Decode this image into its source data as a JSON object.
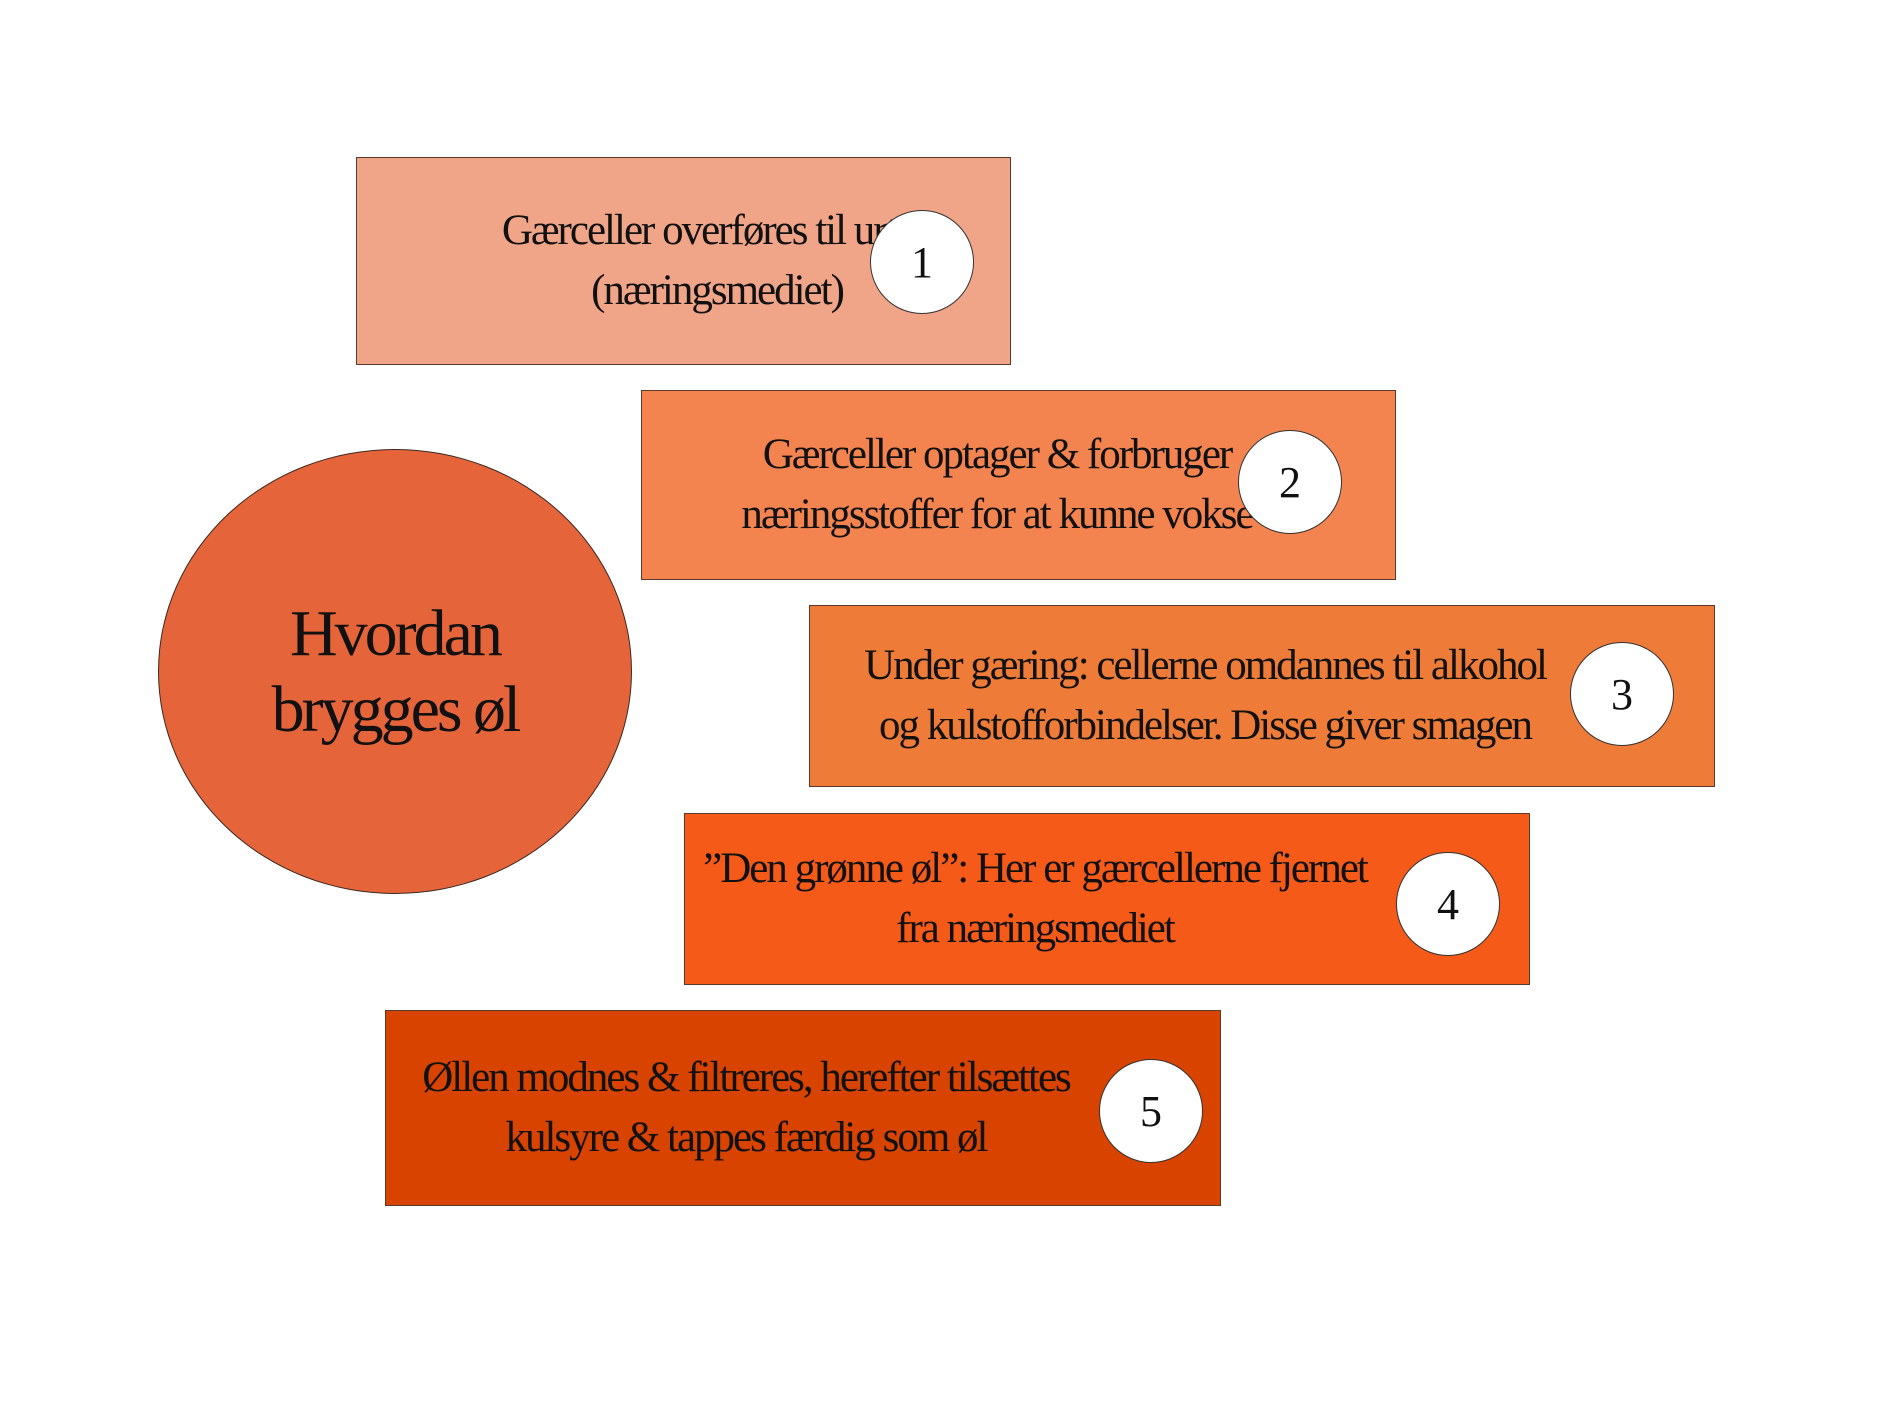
{
  "diagram": {
    "title": "Hvordan\nbrygges øl",
    "steps": [
      {
        "number": "1",
        "text": "Gærceller overføres til urten\n(næringsmediet)",
        "color": "#f1a588"
      },
      {
        "number": "2",
        "text": "Gærceller optager & forbruger\nnæringsstoffer for at kunne vokse",
        "color": "#f3834f"
      },
      {
        "number": "3",
        "text": "Under gæring: cellerne omdannes til alkohol\nog kulstofforbindelser. Disse giver smagen",
        "color": "#ee7b37"
      },
      {
        "number": "4",
        "text": "”Den grønne øl”: Her er gærcellerne fjernet\nfra næringsmediet",
        "color": "#f55a18"
      },
      {
        "number": "5",
        "text": "Øllen modnes & filtreres, herefter tilsættes\nkulsyre & tappes færdig som øl",
        "color": "#d84300"
      }
    ],
    "title_circle_color": "#e6643a"
  }
}
